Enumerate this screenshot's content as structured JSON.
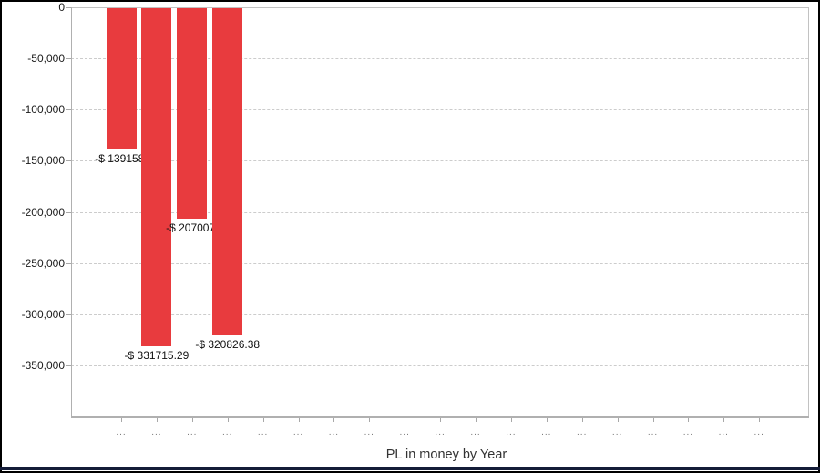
{
  "window": {
    "caption": "PL in money by Year"
  },
  "colors": {
    "bar": "#e83b3e",
    "gridline": "#cccccc",
    "zero_line": "#c2c2c2",
    "axis_line": "#b0b0b0",
    "tick_mark": "#a8a8a8",
    "y_label_text": "#1a1a1a",
    "bar_label_text": "#111111",
    "x_label_text": "#777777",
    "title_text": "#333333",
    "bottom_strip": "#141c38",
    "outer_border": "#000000"
  },
  "chart_data": {
    "type": "bar",
    "title": "PL in money by Year",
    "xlabel": "PL in money by Year",
    "ylabel": "",
    "ylim": [
      -400000,
      0
    ],
    "grid": "horizontal dashed",
    "legend_position": "none",
    "y_ticks": [
      {
        "value": 0,
        "label": "0"
      },
      {
        "value": -50000,
        "label": "-50,000"
      },
      {
        "value": -100000,
        "label": "-100,000"
      },
      {
        "value": -150000,
        "label": "-150,000"
      },
      {
        "value": -200000,
        "label": "-200,000"
      },
      {
        "value": -250000,
        "label": "-250,000"
      },
      {
        "value": -300000,
        "label": "-300,000"
      },
      {
        "value": -350000,
        "label": "-350,000"
      }
    ],
    "x_tick_labels": [
      "...",
      "...",
      "...",
      "...",
      "...",
      "...",
      "...",
      "...",
      "...",
      "...",
      "...",
      "...",
      "...",
      "...",
      "...",
      "...",
      "...",
      "...",
      "..."
    ],
    "bars": [
      {
        "value": -139158,
        "label": "-$ 139158."
      },
      {
        "value": -331715.29,
        "label": "-$ 331715.29"
      },
      {
        "value": -207007,
        "label": "-$ 207007."
      },
      {
        "value": -320826.38,
        "label": "-$ 320826.38"
      }
    ]
  }
}
